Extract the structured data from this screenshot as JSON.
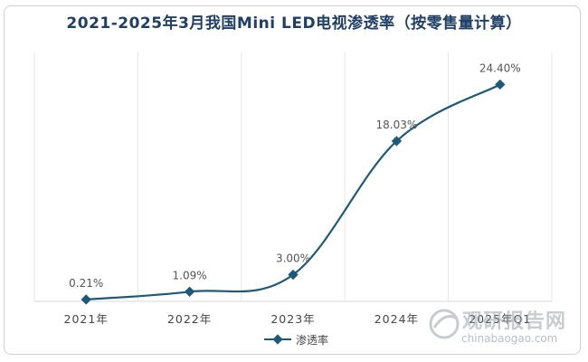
{
  "chart_data": {
    "type": "line",
    "title": "2021-2025年3月我国Mini LED电视渗透率（按零售量计算）",
    "categories": [
      "2021年",
      "2022年",
      "2023年",
      "2024年",
      "2025年Q1"
    ],
    "series": [
      {
        "name": "渗透率",
        "values": [
          0.21,
          1.09,
          3.0,
          18.03,
          24.4
        ],
        "labels": [
          "0.21%",
          "1.09%",
          "3.00%",
          "18.03%",
          "24.40%"
        ]
      }
    ],
    "ylim": [
      0,
      28
    ],
    "grid": "vertical",
    "legend": "bottom-center",
    "line_color": "#1b5a7a",
    "grid_color": "#e6e6e6"
  },
  "watermark": {
    "cn": "观研报告网",
    "en": "chinabaogao.com",
    "color": "#9aa3ad"
  }
}
